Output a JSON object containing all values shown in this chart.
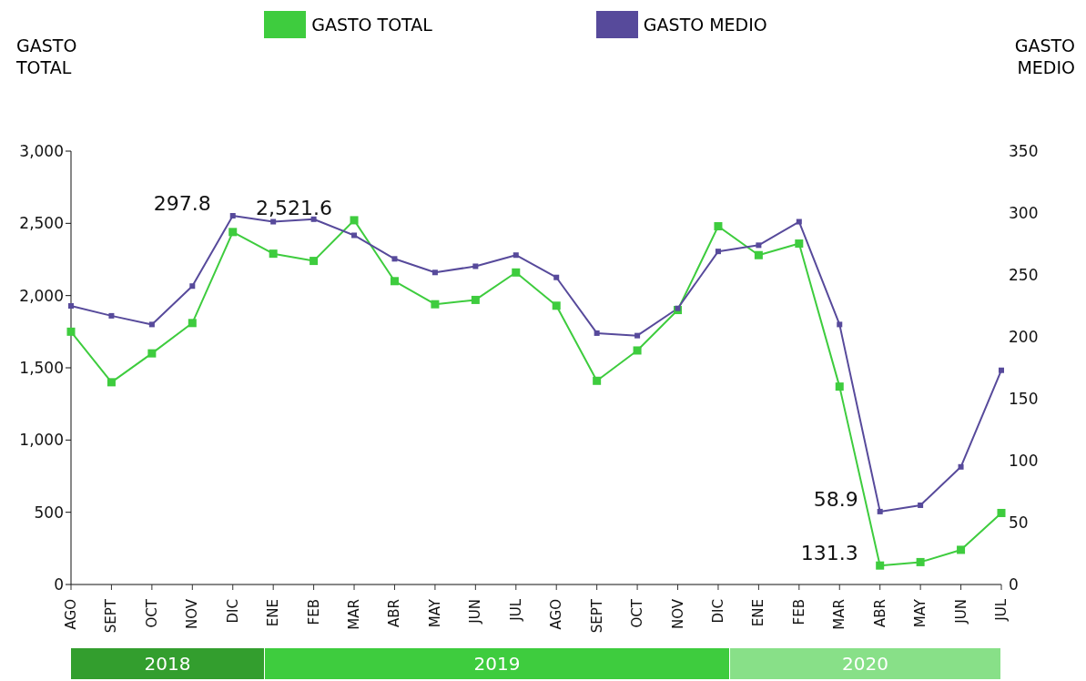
{
  "chart_data": {
    "type": "line",
    "ylabel": "GASTO TOTAL",
    "y2label": "GASTO MEDIO",
    "categories": [
      "AGO",
      "SEPT",
      "OCT",
      "NOV",
      "DIC",
      "ENE",
      "FEB",
      "MAR",
      "ABR",
      "MAY",
      "JUN",
      "JUL",
      "AGO",
      "SEPT",
      "OCT",
      "NOV",
      "DIC",
      "ENE",
      "FEB",
      "MAR",
      "ABR",
      "MAY",
      "JUN",
      "JUL"
    ],
    "series": [
      {
        "name": "GASTO TOTAL",
        "color": "#3ecc3e",
        "values": [
          1750,
          1400,
          1600,
          1810,
          2440,
          2290,
          2240,
          2521.6,
          2100,
          1940,
          1970,
          2160,
          1930,
          1410,
          1620,
          1900,
          2480,
          2280,
          2360,
          1370,
          131.3,
          155,
          240,
          495
        ],
        "value_labels": [
          null,
          null,
          null,
          null,
          null,
          null,
          null,
          "2,521.6",
          null,
          null,
          null,
          null,
          null,
          null,
          null,
          null,
          null,
          null,
          null,
          null,
          "131.3",
          null,
          null,
          null
        ]
      },
      {
        "name": "GASTO MEDIO",
        "color": "#574a9b",
        "axis": "y2",
        "values": [
          225,
          217,
          210,
          241,
          297.8,
          293,
          295,
          282,
          263,
          252,
          257,
          266,
          248,
          203,
          201,
          223,
          269,
          274,
          293,
          210,
          58.9,
          64,
          95,
          173
        ],
        "value_labels": [
          null,
          null,
          null,
          null,
          "297.8",
          null,
          null,
          null,
          null,
          null,
          null,
          null,
          null,
          null,
          null,
          null,
          null,
          null,
          null,
          null,
          "58.9",
          null,
          null,
          null
        ]
      }
    ],
    "ylim": [
      0,
      3000
    ],
    "yticks": [
      0,
      {
        "value": 500,
        "label": "500"
      },
      {
        "value": 1000,
        "label": "1,000"
      },
      {
        "value": 1500,
        "label": "1,500"
      },
      {
        "value": 2000,
        "label": "2,000"
      },
      {
        "value": 2500,
        "label": "2,500"
      },
      {
        "value": 3000,
        "label": "3,000"
      }
    ],
    "y2lim": [
      0,
      350
    ],
    "y2ticks": [
      0,
      50,
      100,
      150,
      200,
      250,
      300,
      350
    ],
    "annotations": [
      "2018",
      "2019",
      "2020"
    ],
    "legend": "top",
    "grid": false,
    "marker": "square",
    "line_style": "solid"
  }
}
